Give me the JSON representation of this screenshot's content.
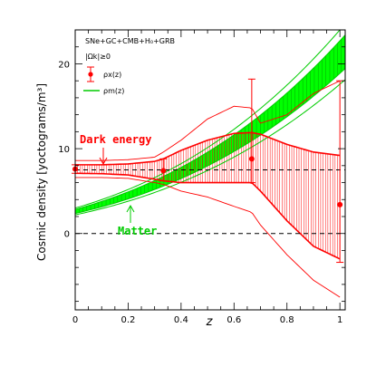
{
  "chart_data": {
    "type": "line",
    "title": "",
    "xlabel": "z",
    "ylabel": "Cosmic density [yoctograms/m³]",
    "xlim": [
      0,
      1.02
    ],
    "ylim": [
      -9,
      24
    ],
    "grid": false,
    "x_ticks": [
      0,
      0.2,
      0.4,
      0.6,
      0.8,
      1
    ],
    "x_tick_labels": [
      "0",
      "0.2",
      "0.4",
      "0.6",
      "0.8",
      "1"
    ],
    "y_ticks": [
      0,
      10,
      20
    ],
    "y_tick_labels": [
      "0",
      "10",
      "20"
    ],
    "legend": {
      "placement": "top-left",
      "header": "SNe+GC+CMB+H₀+GRB",
      "subheader": "|Ωk|≥0",
      "entries": [
        {
          "label": "ρx(z)",
          "color": "#ff0000"
        },
        {
          "label": "ρm(z)",
          "color": "#00cc00"
        }
      ]
    },
    "annotations": [
      {
        "text": "Dark energy",
        "color": "#ff0000"
      },
      {
        "text": "Matter",
        "color": "#00cc00"
      }
    ],
    "dark_energy_points": {
      "name": "ρx(z)",
      "x": [
        0,
        0.333,
        0.667,
        1.0
      ],
      "y": [
        7.6,
        7.4,
        8.8,
        3.4
      ],
      "err_low": [
        0.5,
        1.2,
        2.8,
        6.8
      ],
      "err_high": [
        0.5,
        1.4,
        9.4,
        14.6
      ]
    },
    "dark_energy_band_inner": {
      "x": [
        0,
        0.1,
        0.2,
        0.3,
        0.333,
        0.4,
        0.5,
        0.6,
        0.667,
        0.7,
        0.8,
        0.9,
        1.0
      ],
      "upper": [
        8.1,
        8.1,
        8.2,
        8.5,
        8.8,
        9.8,
        11.0,
        11.8,
        11.9,
        11.7,
        10.5,
        9.6,
        9.2
      ],
      "lower": [
        7.1,
        7.05,
        6.9,
        6.4,
        6.2,
        6.0,
        6.0,
        6.0,
        6.0,
        5.0,
        1.5,
        -1.5,
        -3.0
      ]
    },
    "dark_energy_band_outer": {
      "x": [
        0,
        0.1,
        0.2,
        0.3,
        0.333,
        0.4,
        0.5,
        0.6,
        0.667,
        0.7,
        0.8,
        0.9,
        1.0
      ],
      "upper": [
        8.6,
        8.6,
        8.7,
        9.0,
        9.6,
        11.0,
        13.5,
        15.0,
        14.8,
        13.0,
        14.0,
        16.5,
        18.0
      ],
      "lower": [
        6.6,
        6.6,
        6.5,
        6.0,
        5.8,
        5.0,
        4.3,
        3.2,
        2.5,
        1.0,
        -2.5,
        -5.5,
        -7.5
      ]
    },
    "matter_band": {
      "name": "ρm(z)",
      "omega_m_center": 2.6,
      "omega_m_inner_sigma": 0.24,
      "omega_m_outer_sigma": 0.4,
      "model": "rho0 * (1+z)^3"
    },
    "reference_lines": [
      {
        "y": 7.5,
        "style": "dashed"
      },
      {
        "y": 0,
        "style": "dashed"
      }
    ]
  }
}
